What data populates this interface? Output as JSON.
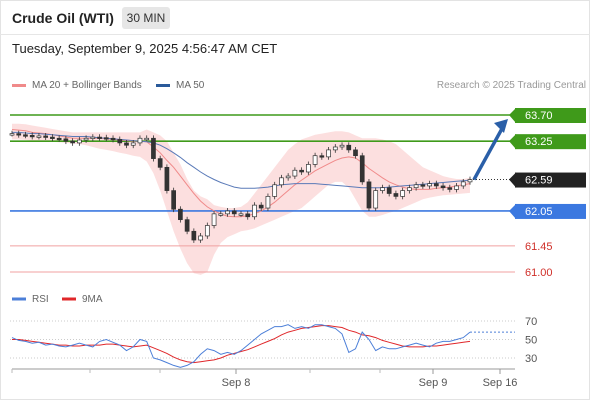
{
  "header": {
    "title": "Crude Oil (WTI)",
    "timeframe": "30 MIN",
    "timestamp": "Tuesday, September 9, 2025 4:56:47 AM CET"
  },
  "legend": {
    "items": [
      {
        "label": "MA 20 + Bollinger Bands",
        "color": "#f08a8a"
      },
      {
        "label": "MA 50",
        "color": "#2a5a9a"
      }
    ],
    "credit": "Research © 2025 Trading Central"
  },
  "chart_data": {
    "type": "candlestick",
    "ylim": [
      60.8,
      63.85
    ],
    "x_ticks": [
      "Sep 8",
      "Sep 9",
      "Sep 16"
    ],
    "last_price": 62.59,
    "levels": [
      {
        "value": 63.7,
        "label": "63.70",
        "kind": "target"
      },
      {
        "value": 63.25,
        "label": "63.25",
        "kind": "resistance"
      },
      {
        "value": 62.59,
        "label": "62.59",
        "kind": "last"
      },
      {
        "value": 62.05,
        "label": "62.05",
        "kind": "pivot"
      },
      {
        "value": 61.45,
        "label": "61.45",
        "kind": "support"
      },
      {
        "value": 61.0,
        "label": "61.00",
        "kind": "support"
      }
    ],
    "forecast": {
      "from": 62.59,
      "to": 63.7
    },
    "close": [
      63.38,
      63.36,
      63.35,
      63.33,
      63.34,
      63.32,
      63.3,
      63.29,
      63.25,
      63.22,
      63.27,
      63.3,
      63.32,
      63.31,
      63.3,
      63.28,
      63.22,
      63.18,
      63.22,
      63.3,
      63.3,
      62.95,
      62.8,
      62.4,
      62.08,
      61.9,
      61.7,
      61.55,
      61.62,
      61.8,
      62.0,
      62.0,
      62.05,
      62.0,
      62.0,
      61.95,
      62.15,
      62.1,
      62.3,
      62.5,
      62.62,
      62.65,
      62.75,
      62.72,
      62.85,
      63.0,
      62.98,
      63.1,
      63.15,
      63.18,
      63.1,
      63.0,
      62.55,
      62.1,
      62.4,
      62.45,
      62.35,
      62.3,
      62.4,
      62.45,
      62.5,
      62.48,
      62.52,
      62.48,
      62.45,
      62.42,
      62.48,
      62.55,
      62.59
    ],
    "ma20": [
      63.45,
      63.44,
      63.43,
      63.4,
      63.39,
      63.38,
      63.36,
      63.34,
      63.32,
      63.3,
      63.3,
      63.3,
      63.3,
      63.3,
      63.29,
      63.28,
      63.27,
      63.26,
      63.25,
      63.25,
      63.24,
      63.15,
      63.05,
      62.92,
      62.8,
      62.65,
      62.5,
      62.35,
      62.22,
      62.12,
      62.05,
      62.0,
      61.96,
      61.95,
      61.95,
      61.97,
      62.0,
      62.05,
      62.12,
      62.2,
      62.3,
      62.4,
      62.5,
      62.58,
      62.66,
      62.74,
      62.8,
      62.86,
      62.92,
      62.96,
      62.98,
      62.96,
      62.88,
      62.78,
      62.7,
      62.62,
      62.55,
      62.5,
      62.46,
      62.43,
      62.42,
      62.42,
      62.42,
      62.44,
      62.45,
      62.46,
      62.48,
      62.5,
      62.52
    ],
    "bb_upper": [
      63.55,
      63.55,
      63.54,
      63.52,
      63.5,
      63.48,
      63.46,
      63.44,
      63.42,
      63.4,
      63.4,
      63.4,
      63.4,
      63.4,
      63.4,
      63.4,
      63.4,
      63.4,
      63.4,
      63.4,
      63.45,
      63.4,
      63.35,
      63.25,
      63.05,
      62.85,
      62.6,
      62.4,
      62.3,
      62.25,
      62.15,
      62.12,
      62.1,
      62.1,
      62.12,
      62.2,
      62.35,
      62.5,
      62.65,
      62.8,
      62.95,
      63.1,
      63.2,
      63.28,
      63.32,
      63.36,
      63.38,
      63.4,
      63.42,
      63.42,
      63.4,
      63.35,
      63.3,
      63.3,
      63.3,
      63.28,
      63.25,
      63.2,
      63.1,
      63.0,
      62.9,
      62.8,
      62.75,
      62.7,
      62.65,
      62.62,
      62.6,
      62.6,
      62.62
    ],
    "bb_lower": [
      63.28,
      63.28,
      63.27,
      63.26,
      63.25,
      63.25,
      63.24,
      63.23,
      63.22,
      63.21,
      63.2,
      63.18,
      63.15,
      63.12,
      63.1,
      63.08,
      63.05,
      63.03,
      63.0,
      62.98,
      62.9,
      62.7,
      62.4,
      62.05,
      61.7,
      61.4,
      61.15,
      60.98,
      60.95,
      61.0,
      61.3,
      61.5,
      61.6,
      61.65,
      61.7,
      61.72,
      61.75,
      61.8,
      61.85,
      61.9,
      61.95,
      62.0,
      62.05,
      62.1,
      62.2,
      62.3,
      62.4,
      62.5,
      62.55,
      62.55,
      62.45,
      62.25,
      62.05,
      61.95,
      61.95,
      61.98,
      62.02,
      62.05,
      62.1,
      62.15,
      62.2,
      62.25,
      62.28,
      62.3,
      62.32,
      62.33,
      62.34,
      62.35,
      62.36
    ],
    "ma50": [
      63.4,
      63.4,
      63.39,
      63.38,
      63.38,
      63.37,
      63.36,
      63.35,
      63.34,
      63.33,
      63.33,
      63.33,
      63.32,
      63.31,
      63.3,
      63.29,
      63.28,
      63.27,
      63.26,
      63.25,
      63.24,
      63.22,
      63.18,
      63.12,
      63.05,
      62.97,
      62.88,
      62.8,
      62.72,
      62.65,
      62.59,
      62.54,
      62.5,
      62.46,
      62.44,
      62.44,
      62.44,
      62.45,
      62.46,
      62.48,
      62.5,
      62.51,
      62.52,
      62.52,
      62.52,
      62.52,
      62.51,
      62.5,
      62.49,
      62.48,
      62.47,
      62.46,
      62.45,
      62.45,
      62.45,
      62.45,
      62.46,
      62.47,
      62.48,
      62.49,
      62.5,
      62.51,
      62.52,
      62.53,
      62.54,
      62.55,
      62.56,
      62.57,
      62.58
    ],
    "rsi_panel": {
      "legend": [
        {
          "label": "RSI",
          "color": "#4c7fd8"
        },
        {
          "label": "9MA",
          "color": "#e0272a"
        }
      ],
      "ticks": [
        70,
        50,
        30
      ],
      "rsi": [
        52,
        49,
        48,
        46,
        47,
        44,
        45,
        43,
        42,
        44,
        46,
        44,
        42,
        48,
        50,
        47,
        44,
        38,
        42,
        50,
        48,
        30,
        28,
        25,
        22,
        20,
        22,
        26,
        34,
        40,
        38,
        34,
        36,
        34,
        38,
        44,
        50,
        56,
        60,
        64,
        64,
        66,
        62,
        64,
        62,
        66,
        66,
        64,
        62,
        56,
        36,
        40,
        58,
        50,
        38,
        42,
        40,
        40,
        42,
        44,
        46,
        44,
        42,
        46,
        48,
        48,
        50,
        52,
        58
      ],
      "ma9": [
        50,
        50,
        49,
        48,
        47,
        46,
        45,
        44,
        44,
        43,
        43,
        44,
        44,
        44,
        45,
        45,
        44,
        43,
        42,
        43,
        44,
        41,
        38,
        35,
        31,
        28,
        26,
        25,
        26,
        27,
        28,
        30,
        33,
        35,
        37,
        39,
        42,
        45,
        48,
        51,
        55,
        58,
        60,
        62,
        63,
        64,
        65,
        65,
        64,
        63,
        60,
        58,
        55,
        54,
        52,
        49,
        47,
        45,
        43,
        42,
        42,
        42,
        43,
        43,
        44,
        45,
        46,
        47,
        48
      ]
    }
  }
}
